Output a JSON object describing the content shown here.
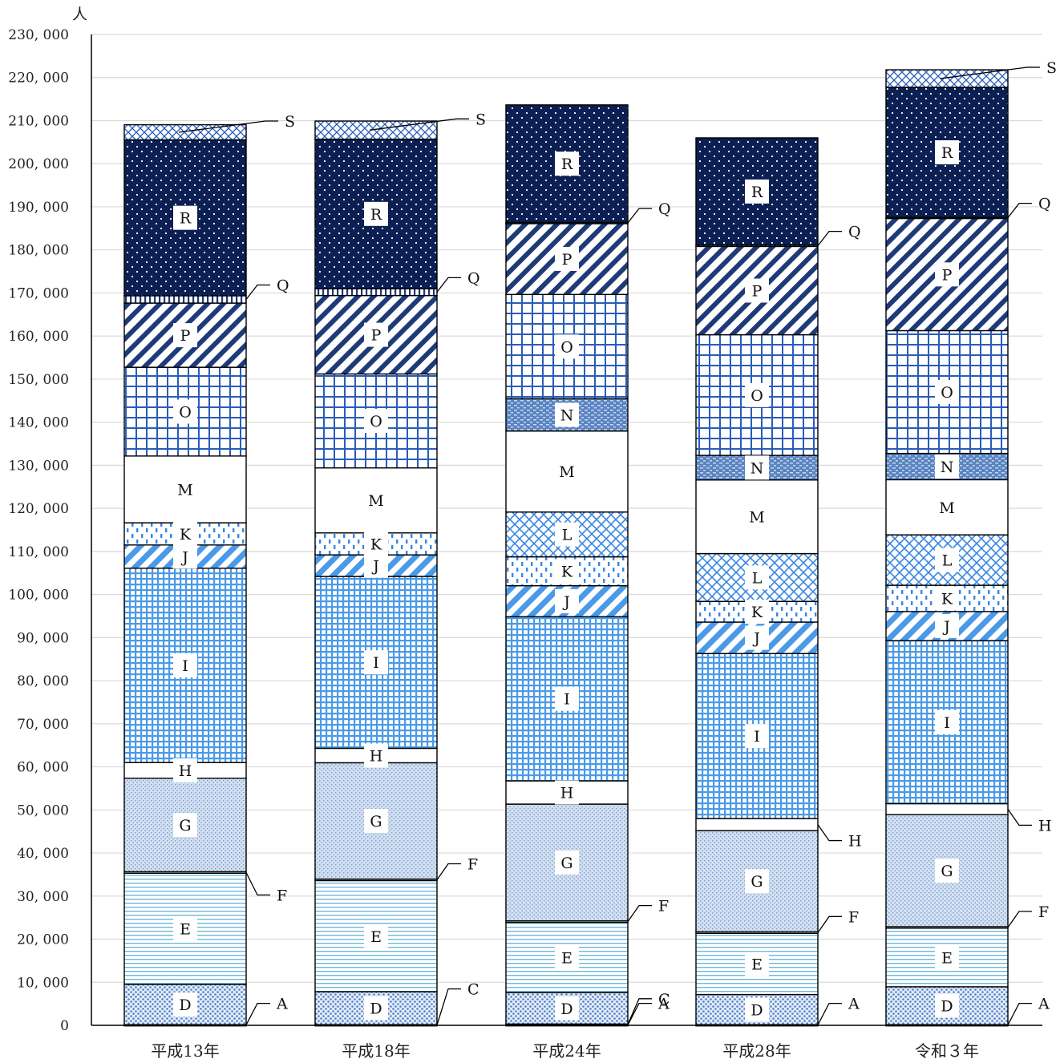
{
  "chart_data": {
    "type": "bar",
    "stacked": true,
    "ylabel": "人",
    "ylim": [
      0,
      230000
    ],
    "yticks": [
      0,
      10000,
      20000,
      30000,
      40000,
      50000,
      60000,
      70000,
      80000,
      90000,
      100000,
      110000,
      120000,
      130000,
      140000,
      150000,
      160000,
      170000,
      180000,
      190000,
      200000,
      210000,
      220000,
      230000
    ],
    "ytick_labels": [
      "0",
      "10, 000",
      "20, 000",
      "30, 000",
      "40, 000",
      "50, 000",
      "60, 000",
      "70, 000",
      "80, 000",
      "90, 000",
      "100, 000",
      "110, 000",
      "120, 000",
      "130, 000",
      "140, 000",
      "150, 000",
      "160, 000",
      "170, 000",
      "180, 000",
      "190, 000",
      "200, 000",
      "210, 000",
      "220, 000",
      "230, 000"
    ],
    "grid": true,
    "categories": [
      "平成13年",
      "平成18年",
      "平成24年",
      "平成28年",
      "令和３年"
    ],
    "series": [
      {
        "name": "A",
        "values": [
          150,
          0,
          150,
          150,
          150
        ]
      },
      {
        "name": "C",
        "values": [
          0,
          150,
          150,
          0,
          0
        ]
      },
      {
        "name": "D",
        "values": [
          9350,
          7650,
          7300,
          7000,
          8800
        ]
      },
      {
        "name": "E",
        "values": [
          25800,
          25800,
          16300,
          14200,
          13600
        ]
      },
      {
        "name": "F",
        "values": [
          350,
          350,
          350,
          350,
          350
        ]
      },
      {
        "name": "G",
        "values": [
          21700,
          27000,
          27100,
          23500,
          26000
        ]
      },
      {
        "name": "H",
        "values": [
          3650,
          3350,
          5400,
          2800,
          2550
        ]
      },
      {
        "name": "I",
        "values": [
          45100,
          39900,
          38100,
          38300,
          37850
        ]
      },
      {
        "name": "J",
        "values": [
          5400,
          5000,
          7200,
          7300,
          6750
        ]
      },
      {
        "name": "K",
        "values": [
          5150,
          5100,
          6700,
          4800,
          6100
        ]
      },
      {
        "name": "L",
        "values": [
          0,
          0,
          10400,
          11100,
          11700
        ]
      },
      {
        "name": "M",
        "values": [
          15500,
          15100,
          18800,
          17100,
          12800
        ]
      },
      {
        "name": "N",
        "values": [
          0,
          0,
          7500,
          5700,
          6100
        ]
      },
      {
        "name": "O",
        "values": [
          20600,
          21800,
          24200,
          28000,
          28500
        ]
      },
      {
        "name": "P",
        "values": [
          14900,
          18200,
          16500,
          20500,
          26100
        ]
      },
      {
        "name": "Q",
        "values": [
          1700,
          1600,
          200,
          300,
          200
        ]
      },
      {
        "name": "R",
        "values": [
          36200,
          34700,
          27300,
          24900,
          30200
        ]
      },
      {
        "name": "S",
        "values": [
          3500,
          4200,
          0,
          0,
          4050
        ]
      }
    ]
  }
}
